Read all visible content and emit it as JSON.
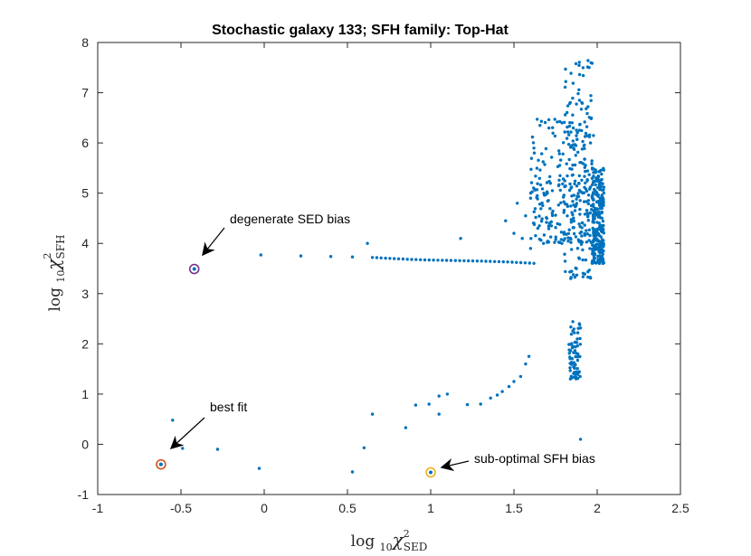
{
  "chart_data": {
    "type": "scatter",
    "title": "Stochastic galaxy 133; SFH family: Top-Hat",
    "xlabel": {
      "prefix": "log ",
      "sub": "10",
      "chi": "χ",
      "sup": "2",
      "subscript": "SED"
    },
    "ylabel": {
      "prefix": "log ",
      "sub": "10",
      "chi": "χ",
      "sup": "2",
      "subscript": "SFH"
    },
    "xlim": [
      -1,
      2.5
    ],
    "ylim": [
      -1,
      8
    ],
    "xticks": [
      -1,
      -0.5,
      0,
      0.5,
      1,
      1.5,
      2,
      2.5
    ],
    "xtick_labels": [
      "-1",
      "-0.5",
      "0",
      "0.5",
      "1",
      "1.5",
      "2",
      "2.5"
    ],
    "yticks": [
      -1,
      0,
      1,
      2,
      3,
      4,
      5,
      6,
      7,
      8
    ],
    "ytick_labels": [
      "-1",
      "0",
      "1",
      "2",
      "3",
      "4",
      "5",
      "6",
      "7",
      "8"
    ],
    "grid": false,
    "series_color": "#0072bd",
    "scatter_points": [
      [
        -0.55,
        0.48
      ],
      [
        -0.49,
        -0.08
      ],
      [
        -0.28,
        -0.1
      ],
      [
        -0.03,
        -0.48
      ],
      [
        0.53,
        -0.55
      ],
      [
        0.6,
        -0.07
      ],
      [
        0.65,
        0.6
      ],
      [
        0.85,
        0.33
      ],
      [
        0.91,
        0.78
      ],
      [
        0.99,
        0.8
      ],
      [
        1.05,
        0.96
      ],
      [
        1.05,
        0.6
      ],
      [
        1.1,
        1.0
      ],
      [
        1.22,
        0.79
      ],
      [
        1.3,
        0.8
      ],
      [
        1.36,
        0.92
      ],
      [
        1.4,
        0.98
      ],
      [
        1.43,
        1.05
      ],
      [
        1.47,
        1.15
      ],
      [
        1.5,
        1.25
      ],
      [
        1.54,
        1.35
      ],
      [
        1.57,
        1.6
      ],
      [
        1.59,
        1.75
      ],
      [
        1.9,
        0.1
      ],
      [
        -0.02,
        3.77
      ],
      [
        0.22,
        3.75
      ],
      [
        0.4,
        3.74
      ],
      [
        0.53,
        3.73
      ],
      [
        0.62,
        4.0
      ],
      [
        1.18,
        4.1
      ],
      [
        1.45,
        4.45
      ],
      [
        1.5,
        4.2
      ],
      [
        1.55,
        4.1
      ],
      [
        1.57,
        4.55
      ],
      [
        1.6,
        3.9
      ],
      [
        1.62,
        4.4
      ],
      [
        1.52,
        4.8
      ],
      [
        1.6,
        4.9
      ],
      [
        1.64,
        4.95
      ],
      [
        1.68,
        5.0
      ],
      [
        1.73,
        4.6
      ]
    ],
    "line_segment": [
      [
        0.65,
        3.72
      ],
      [
        1.62,
        3.6
      ]
    ],
    "line_count": 38,
    "clusters": [
      {
        "x": [
          1.6,
          1.98
        ],
        "y": [
          4.0,
          6.5
        ],
        "count": 220
      },
      {
        "x": [
          1.8,
          1.97
        ],
        "y": [
          3.3,
          7.7
        ],
        "count": 150
      },
      {
        "x": [
          1.97,
          2.04
        ],
        "y": [
          3.6,
          5.5
        ],
        "count": 260
      },
      {
        "x": [
          1.83,
          1.9
        ],
        "y": [
          1.3,
          2.5
        ],
        "count": 70
      }
    ],
    "highlighted": [
      {
        "name": "best-fit",
        "x": -0.62,
        "y": -0.4,
        "ring_color": "#d95319"
      },
      {
        "name": "degenerate-sed",
        "x": -0.42,
        "y": 3.49,
        "ring_color": "#7e2f8e"
      },
      {
        "name": "suboptimal-sfh",
        "x": 1.0,
        "y": -0.56,
        "ring_color": "#edb120"
      }
    ],
    "annotations": [
      {
        "name": "degenerate-sed-bias",
        "text": "degenerate SED bias",
        "target": [
          -0.42,
          3.49
        ]
      },
      {
        "name": "best-fit",
        "text": "best fit",
        "target": [
          -0.62,
          -0.4
        ]
      },
      {
        "name": "sub-optimal-sfh-bias",
        "text": "sub-optimal SFH bias",
        "target": [
          1.0,
          -0.56
        ]
      }
    ]
  }
}
